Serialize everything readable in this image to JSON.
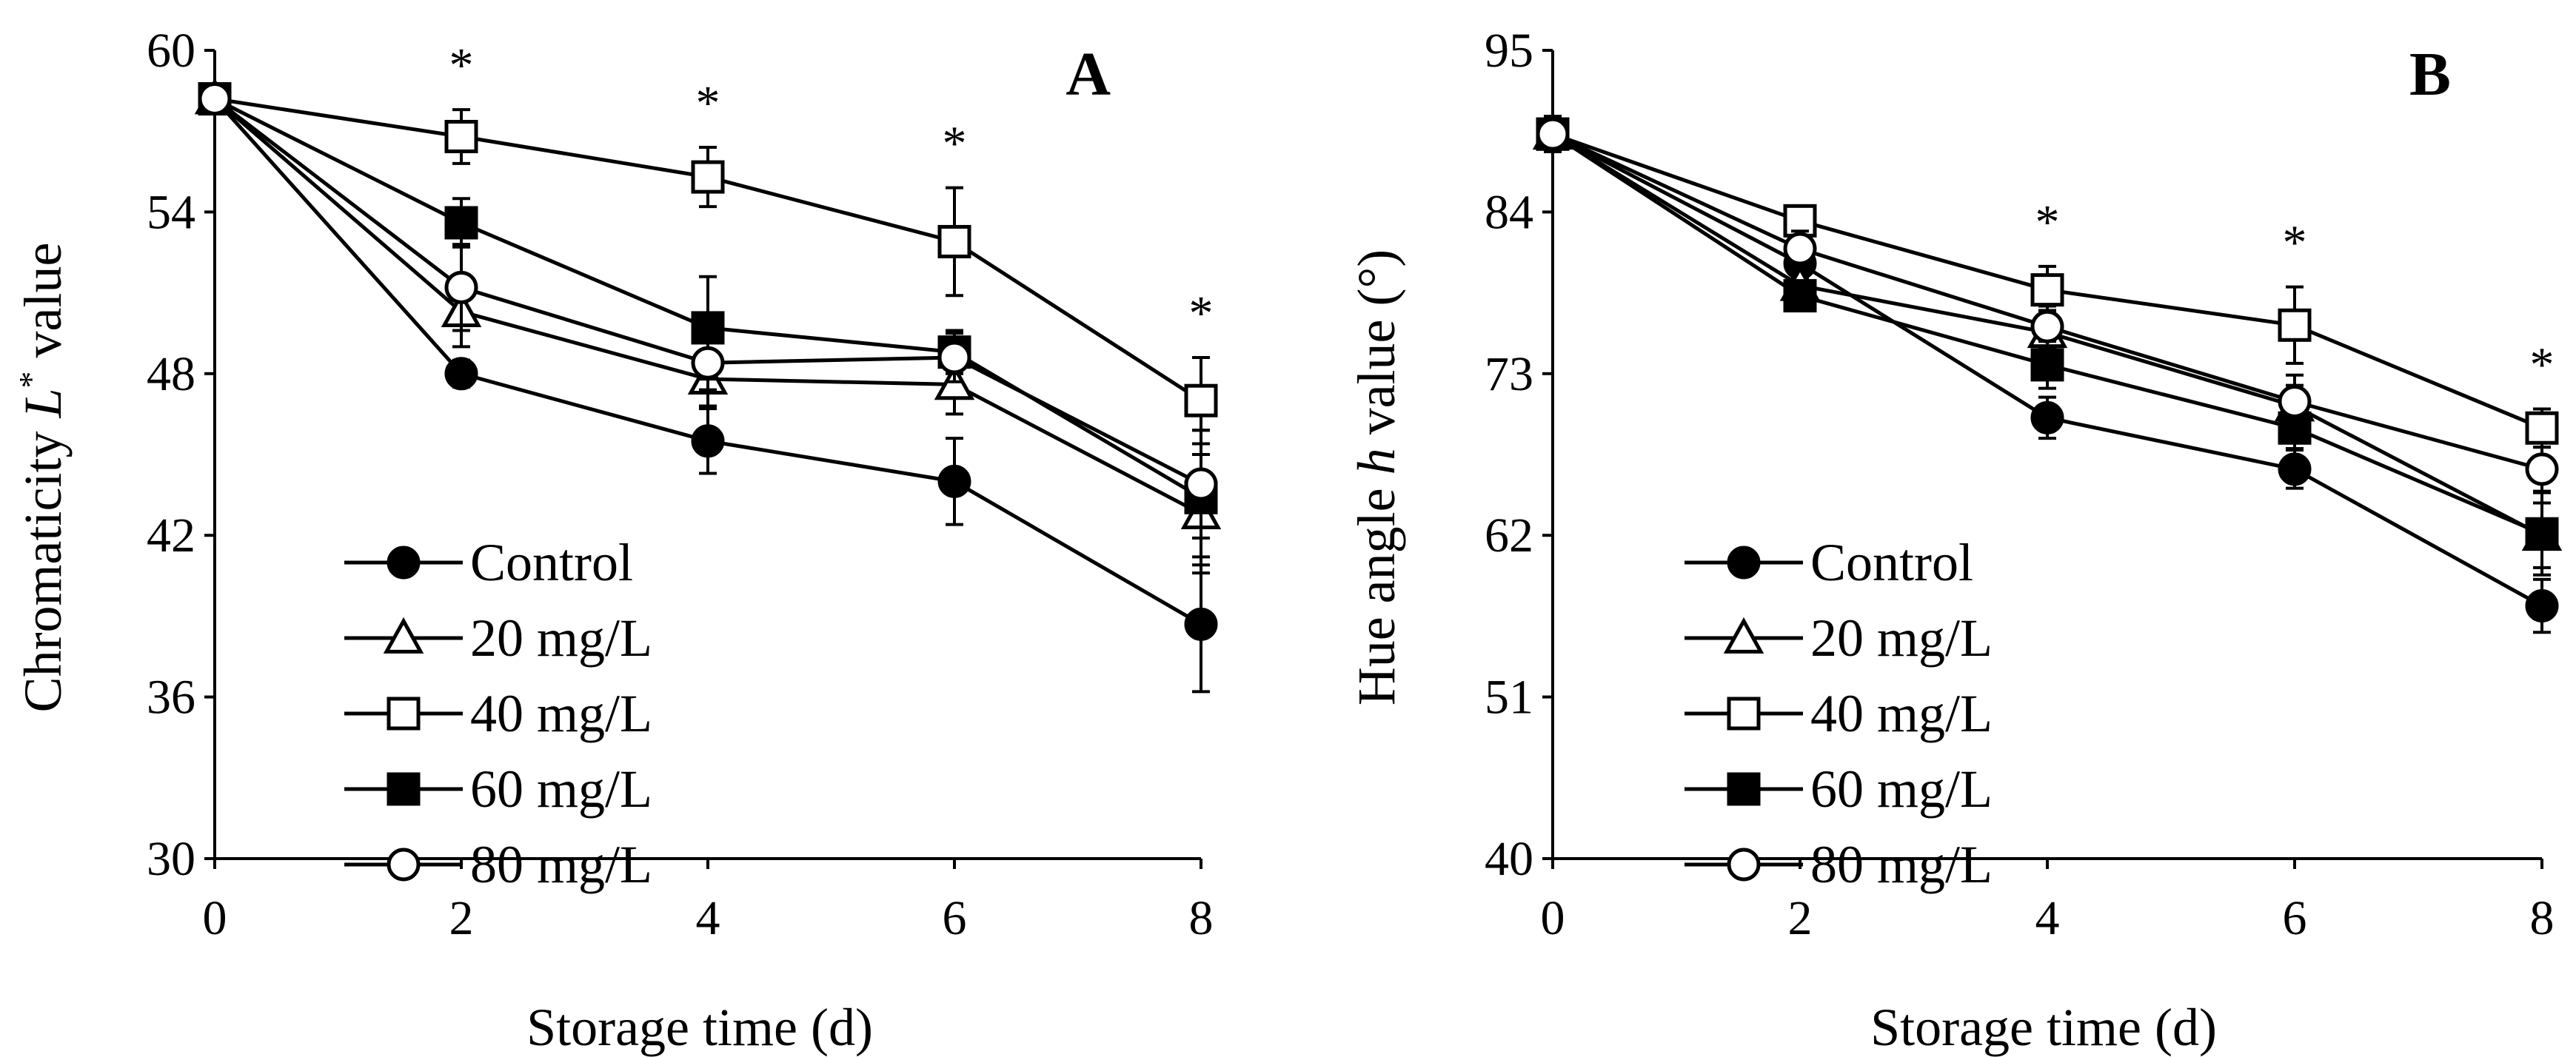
{
  "figure": {
    "background": "#ffffff"
  },
  "chart_data": [
    {
      "panel": "A",
      "type": "line",
      "xlabel": "Storage time (d)",
      "ylabel_prefix": "Chromaticity ",
      "ylabel_italic": "L",
      "ylabel_sup": "*",
      "ylabel_suffix": " value",
      "ylim": [
        30,
        60
      ],
      "yticks": [
        30,
        36,
        42,
        48,
        54,
        60
      ],
      "xlim": [
        0,
        8
      ],
      "xticks": [
        0,
        2,
        4,
        6,
        8
      ],
      "x": [
        0,
        2,
        4,
        6,
        8
      ],
      "legend_position": "bottom-left",
      "significance": [
        {
          "x": 2,
          "label": "*"
        },
        {
          "x": 4,
          "label": "*"
        },
        {
          "x": 6,
          "label": "*"
        },
        {
          "x": 8,
          "label": "*"
        }
      ],
      "series": [
        {
          "name": "Control",
          "marker": "circle",
          "fill": "filled",
          "values": [
            58.2,
            48.0,
            45.5,
            44.0,
            38.7
          ],
          "errors": [
            0.4,
            0.5,
            1.2,
            1.6,
            2.5
          ]
        },
        {
          "name": "20 mg/L",
          "marker": "triangle",
          "fill": "open",
          "values": [
            58.2,
            50.3,
            47.8,
            47.6,
            42.8
          ],
          "errors": [
            0.4,
            1.3,
            1.0,
            1.1,
            2.2
          ]
        },
        {
          "name": "40 mg/L",
          "marker": "square",
          "fill": "open",
          "values": [
            58.2,
            56.8,
            55.3,
            52.9,
            47.0
          ],
          "errors": [
            0.4,
            1.0,
            1.1,
            2.0,
            1.6
          ]
        },
        {
          "name": "60 mg/L",
          "marker": "square",
          "fill": "filled",
          "values": [
            58.2,
            53.6,
            49.7,
            48.8,
            43.4
          ],
          "errors": [
            0.4,
            0.9,
            1.9,
            0.8,
            2.5
          ]
        },
        {
          "name": "80 mg/L",
          "marker": "circle",
          "fill": "open",
          "values": [
            58.2,
            51.2,
            48.4,
            48.6,
            43.9
          ],
          "errors": [
            0.4,
            1.6,
            1.0,
            0.9,
            2.0
          ]
        }
      ]
    },
    {
      "panel": "B",
      "type": "line",
      "xlabel": "Storage time (d)",
      "ylabel_prefix": "Hue angle ",
      "ylabel_italic": "h",
      "ylabel_sup": "",
      "ylabel_suffix": " value (°)",
      "ylim": [
        40,
        95
      ],
      "yticks": [
        40,
        51,
        62,
        73,
        84,
        95
      ],
      "xlim": [
        0,
        8
      ],
      "xticks": [
        0,
        2,
        4,
        6,
        8
      ],
      "x": [
        0,
        2,
        4,
        6,
        8
      ],
      "legend_position": "bottom-left",
      "significance": [
        {
          "x": 4,
          "label": "*"
        },
        {
          "x": 6,
          "label": "*"
        },
        {
          "x": 8,
          "label": "*"
        }
      ],
      "series": [
        {
          "name": "Control",
          "marker": "circle",
          "fill": "filled",
          "values": [
            89.3,
            80.5,
            70.0,
            66.5,
            57.2
          ],
          "errors": [
            1.2,
            1.0,
            1.4,
            1.3,
            1.8
          ]
        },
        {
          "name": "20 mg/L",
          "marker": "triangle",
          "fill": "open",
          "values": [
            89.3,
            79.0,
            75.8,
            70.8,
            62.0
          ],
          "errors": [
            1.2,
            1.0,
            1.5,
            1.4,
            2.2
          ]
        },
        {
          "name": "40 mg/L",
          "marker": "square",
          "fill": "open",
          "values": [
            89.3,
            83.4,
            78.7,
            76.3,
            69.3
          ],
          "errors": [
            1.2,
            1.0,
            1.6,
            2.6,
            1.3
          ]
        },
        {
          "name": "60 mg/L",
          "marker": "square",
          "fill": "filled",
          "values": [
            89.3,
            78.3,
            73.6,
            69.3,
            62.1
          ],
          "errors": [
            1.2,
            1.0,
            1.6,
            1.4,
            2.8
          ]
        },
        {
          "name": "80 mg/L",
          "marker": "circle",
          "fill": "open",
          "values": [
            89.3,
            81.5,
            76.2,
            71.1,
            66.5
          ],
          "errors": [
            1.2,
            1.2,
            1.4,
            1.8,
            1.5
          ]
        }
      ]
    }
  ]
}
